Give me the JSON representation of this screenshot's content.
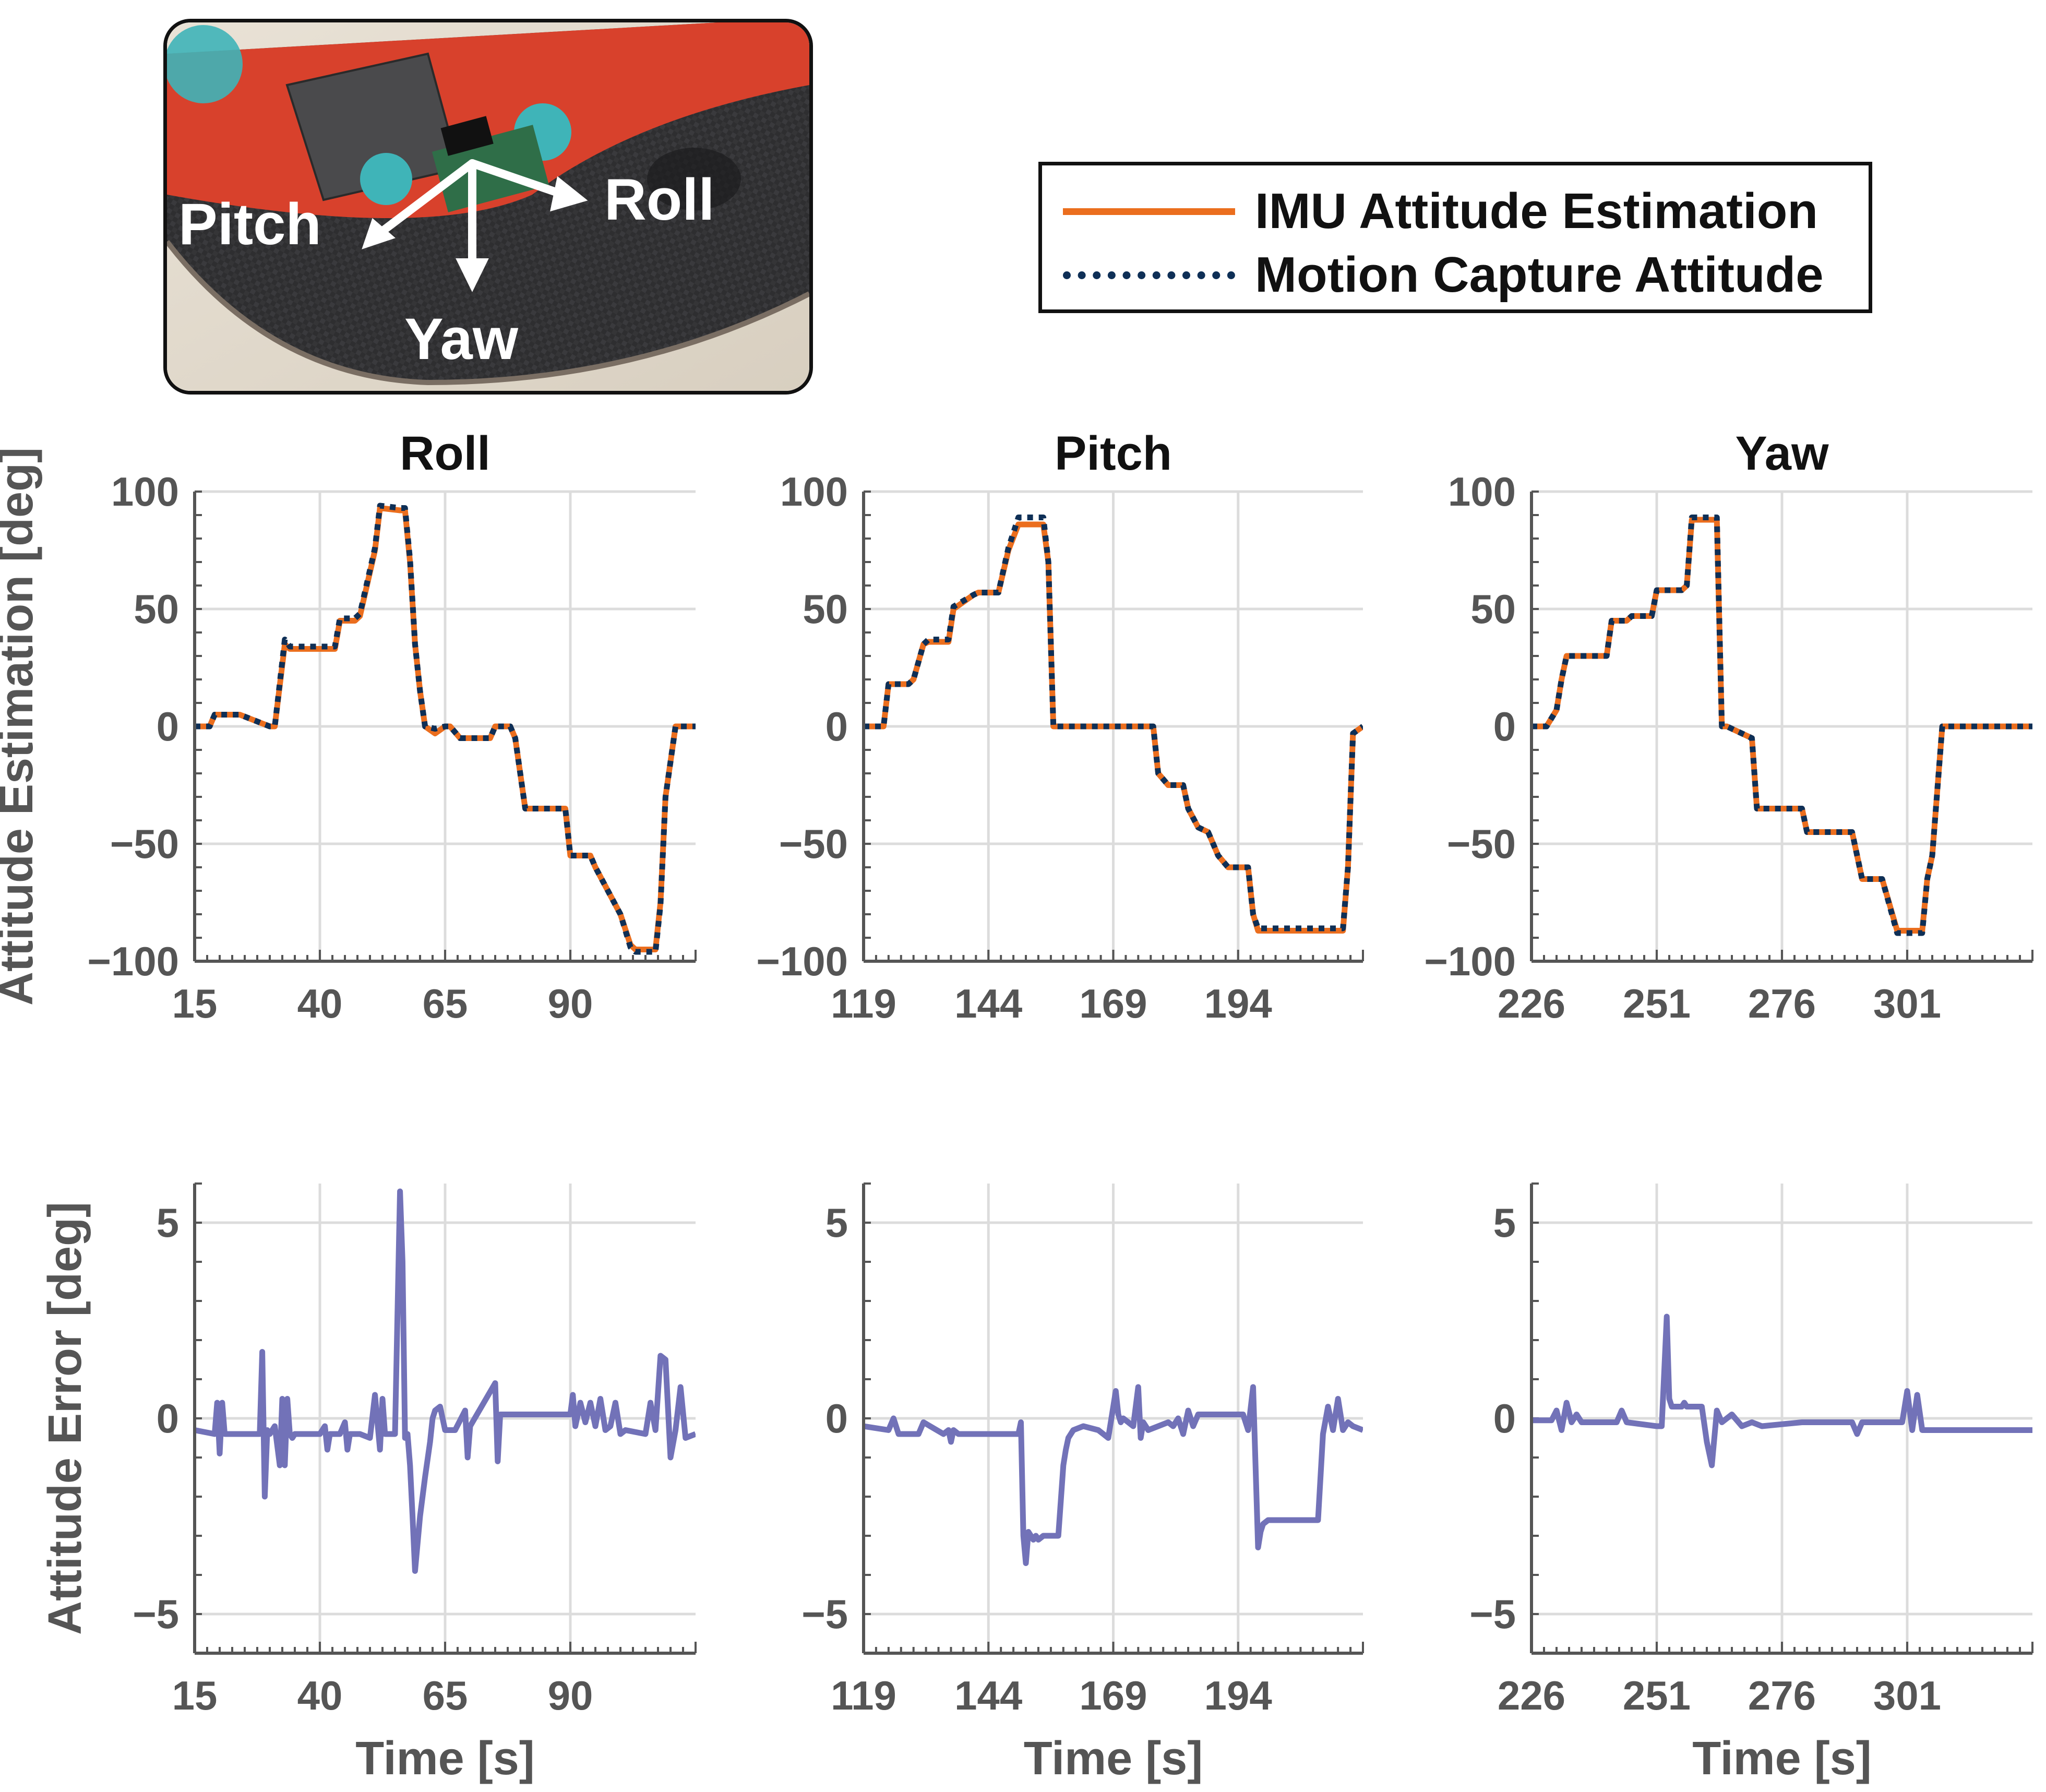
{
  "photo": {
    "labels": {
      "pitch": "Pitch",
      "roll": "Roll",
      "yaw": "Yaw"
    }
  },
  "legend": {
    "imu_label": "IMU Attitude Estimation",
    "mocap_label": "Motion Capture Attitude"
  },
  "colors": {
    "imu": "#EB6E1E",
    "mocap": "#0E2F56",
    "error": "#7272B8",
    "grid": "#dcdcdc",
    "axis": "#555555"
  },
  "chart_data": [
    {
      "type": "line",
      "panel": "roll-estimation",
      "title": "Roll",
      "ylabel": "Attitude Estimation [deg]",
      "xlim": [
        15,
        115
      ],
      "ylim": [
        -100,
        100
      ],
      "xticks": [
        "15",
        "40",
        "65",
        "90"
      ],
      "yticks": [
        "100",
        "50",
        "0",
        "−50",
        "−100"
      ],
      "series": [
        {
          "name": "IMU Attitude Estimation",
          "x": [
            15,
            18,
            19,
            24,
            30,
            31,
            33,
            34,
            35,
            43,
            44,
            47,
            48,
            51,
            52,
            56,
            57,
            58,
            59,
            60,
            61,
            63,
            65,
            66,
            68,
            74,
            75,
            78,
            79,
            80,
            81,
            89,
            90,
            94,
            95,
            100,
            102,
            103,
            107,
            108,
            109,
            111,
            112,
            115
          ],
          "y": [
            0,
            0,
            5,
            5,
            0,
            0,
            35,
            33,
            33,
            33,
            45,
            45,
            47,
            75,
            93,
            92,
            92,
            70,
            35,
            15,
            0,
            -3,
            0,
            0,
            -5,
            -5,
            0,
            0,
            -5,
            -20,
            -35,
            -35,
            -55,
            -55,
            -60,
            -80,
            -93,
            -95,
            -95,
            -75,
            -30,
            0,
            0,
            0
          ]
        },
        {
          "name": "Motion Capture Attitude",
          "x": [
            15,
            18,
            19,
            24,
            30,
            31,
            33,
            34,
            35,
            43,
            44,
            47,
            48,
            51,
            52,
            56,
            57,
            58,
            59,
            60,
            61,
            63,
            65,
            66,
            68,
            74,
            75,
            78,
            79,
            80,
            81,
            89,
            90,
            94,
            95,
            100,
            102,
            103,
            107,
            108,
            109,
            111,
            112,
            115
          ],
          "y": [
            0,
            0,
            5,
            5,
            0,
            0,
            37,
            34,
            34,
            34,
            46,
            46,
            48,
            76,
            94,
            93,
            93,
            71,
            35,
            15,
            0,
            -1,
            0,
            0,
            -5,
            -5,
            0,
            0,
            -5,
            -20,
            -35,
            -35,
            -55,
            -55,
            -60,
            -80,
            -94,
            -96,
            -96,
            -76,
            -30,
            0,
            0,
            0
          ]
        }
      ]
    },
    {
      "type": "line",
      "panel": "pitch-estimation",
      "title": "Pitch",
      "xlim": [
        119,
        219
      ],
      "ylim": [
        -100,
        100
      ],
      "xticks": [
        "119",
        "144",
        "169",
        "194"
      ],
      "yticks": [
        "100",
        "50",
        "0",
        "−50",
        "−100"
      ],
      "series": [
        {
          "name": "IMU Attitude Estimation",
          "x": [
            119,
            123,
            124,
            128,
            129,
            131,
            132,
            136,
            137,
            141,
            142,
            146,
            148,
            150,
            151,
            155,
            156,
            157,
            159,
            164,
            177,
            178,
            180,
            183,
            184,
            186,
            188,
            190,
            192,
            196,
            197,
            198,
            200,
            201,
            215,
            216,
            217,
            219
          ],
          "y": [
            0,
            0,
            18,
            18,
            20,
            35,
            36,
            36,
            50,
            56,
            57,
            57,
            75,
            86,
            86,
            86,
            70,
            0,
            0,
            0,
            0,
            -20,
            -25,
            -25,
            -35,
            -43,
            -45,
            -55,
            -60,
            -60,
            -80,
            -87,
            -87,
            -87,
            -87,
            -60,
            -3,
            0
          ]
        },
        {
          "name": "Motion Capture Attitude",
          "x": [
            119,
            123,
            124,
            128,
            129,
            131,
            132,
            136,
            137,
            141,
            142,
            146,
            148,
            150,
            151,
            155,
            156,
            157,
            159,
            164,
            177,
            178,
            180,
            183,
            184,
            186,
            188,
            190,
            192,
            196,
            197,
            198,
            200,
            201,
            215,
            216,
            217,
            219
          ],
          "y": [
            0,
            0,
            18,
            18,
            20,
            35,
            37,
            37,
            51,
            56,
            57,
            57,
            76,
            89,
            89,
            89,
            70,
            0,
            0,
            0,
            0,
            -20,
            -25,
            -25,
            -35,
            -43,
            -45,
            -55,
            -60,
            -60,
            -80,
            -86,
            -86,
            -86,
            -86,
            -60,
            -3,
            0
          ]
        }
      ]
    },
    {
      "type": "line",
      "panel": "yaw-estimation",
      "title": "Yaw",
      "xlim": [
        226,
        326
      ],
      "ylim": [
        -100,
        100
      ],
      "xticks": [
        "226",
        "251",
        "276",
        "301"
      ],
      "yticks": [
        "100",
        "50",
        "0",
        "−50",
        "−100"
      ],
      "series": [
        {
          "name": "IMU Attitude Estimation",
          "x": [
            226,
            229,
            231,
            232,
            233,
            234,
            241,
            242,
            245,
            246,
            250,
            251,
            256,
            257,
            258,
            263,
            264,
            265,
            270,
            271,
            280,
            281,
            290,
            292,
            296,
            299,
            304,
            305,
            306,
            308,
            326
          ],
          "y": [
            0,
            0,
            7,
            20,
            30,
            30,
            30,
            45,
            45,
            47,
            47,
            58,
            58,
            60,
            88,
            88,
            0,
            0,
            -5,
            -35,
            -35,
            -45,
            -45,
            -65,
            -65,
            -87,
            -87,
            -65,
            -55,
            0,
            0
          ]
        },
        {
          "name": "Motion Capture Attitude",
          "x": [
            226,
            229,
            231,
            232,
            233,
            234,
            241,
            242,
            245,
            246,
            250,
            251,
            256,
            257,
            258,
            263,
            264,
            265,
            270,
            271,
            280,
            281,
            290,
            292,
            296,
            299,
            304,
            305,
            306,
            308,
            326
          ],
          "y": [
            0,
            0,
            7,
            20,
            30,
            30,
            30,
            45,
            45,
            47,
            47,
            58,
            58,
            60,
            89,
            89,
            0,
            0,
            -5,
            -35,
            -35,
            -45,
            -45,
            -65,
            -65,
            -88,
            -88,
            -65,
            -55,
            0,
            0
          ]
        }
      ]
    },
    {
      "type": "line",
      "panel": "roll-error",
      "ylabel": "Attitude Error [deg]",
      "xlabel": "Time [s]",
      "xlim": [
        15,
        115
      ],
      "ylim": [
        -6,
        6
      ],
      "xticks": [
        "15",
        "40",
        "65",
        "90"
      ],
      "yticks": [
        "5",
        "0",
        "−5"
      ],
      "series": [
        {
          "name": "Attitude Error",
          "x": [
            15,
            19,
            19.5,
            20,
            20.5,
            21,
            28,
            28.5,
            29,
            29.5,
            30,
            31,
            32,
            32.5,
            33,
            33.5,
            34,
            34.5,
            35,
            40,
            41,
            41.5,
            42,
            44,
            45,
            45.5,
            46,
            48,
            50,
            51,
            52,
            52.5,
            53,
            55,
            56,
            56.5,
            57,
            57.5,
            58,
            58.5,
            59,
            60,
            61,
            62,
            62.5,
            63,
            64,
            65,
            66,
            67,
            69,
            69.5,
            70,
            75,
            75.5,
            76,
            77,
            77.5,
            78,
            79,
            90,
            90.5,
            91,
            92,
            93,
            94,
            95,
            96,
            97,
            98,
            99,
            100,
            101,
            105,
            106,
            107,
            108,
            109,
            110,
            111,
            112,
            113,
            115
          ],
          "y": [
            -0.3,
            -0.4,
            0.4,
            -0.9,
            0.4,
            -0.4,
            -0.4,
            1.7,
            -2.0,
            -0.3,
            -0.4,
            -0.2,
            -1.2,
            0.5,
            -1.2,
            0.5,
            -0.4,
            -0.5,
            -0.4,
            -0.4,
            -0.2,
            -0.8,
            -0.4,
            -0.4,
            -0.1,
            -0.8,
            -0.4,
            -0.4,
            -0.5,
            0.6,
            -0.8,
            0.5,
            -0.4,
            -0.4,
            5.8,
            4.0,
            -0.5,
            -0.4,
            -1.2,
            -2.5,
            -3.9,
            -2.5,
            -1.5,
            -0.6,
            0.0,
            0.2,
            0.3,
            -0.3,
            -0.3,
            -0.3,
            0.2,
            -1.0,
            -0.2,
            0.9,
            -1.1,
            0.1,
            0.1,
            0.1,
            0.1,
            0.1,
            0.1,
            0.6,
            -0.2,
            0.4,
            -0.1,
            0.4,
            -0.2,
            0.5,
            -0.3,
            -0.2,
            0.4,
            -0.4,
            -0.3,
            -0.4,
            0.4,
            -0.3,
            1.6,
            1.5,
            -1.0,
            -0.3,
            0.8,
            -0.5,
            -0.4
          ]
        }
      ]
    },
    {
      "type": "line",
      "panel": "pitch-error",
      "xlabel": "Time [s]",
      "xlim": [
        119,
        219
      ],
      "ylim": [
        -6,
        6
      ],
      "xticks": [
        "119",
        "144",
        "169",
        "194"
      ],
      "yticks": [
        "5",
        "0",
        "−5"
      ],
      "series": [
        {
          "name": "Attitude Error",
          "x": [
            119,
            124,
            125,
            126,
            130,
            131,
            135,
            136,
            136.5,
            137,
            138,
            140,
            150,
            150.5,
            151,
            151.5,
            152,
            153,
            153.5,
            154,
            155,
            158,
            159,
            159.5,
            160,
            161,
            163,
            166,
            167,
            168,
            169,
            169.5,
            170,
            170.5,
            171,
            173,
            174,
            174.5,
            175,
            176,
            180,
            181,
            182,
            183,
            184,
            185,
            186,
            190,
            191,
            195,
            196,
            197,
            198,
            198.5,
            199,
            200,
            201,
            209,
            210,
            211,
            212,
            213,
            214,
            215,
            216,
            217,
            219
          ],
          "y": [
            -0.2,
            -0.3,
            0.0,
            -0.4,
            -0.4,
            -0.1,
            -0.4,
            -0.3,
            -0.6,
            -0.3,
            -0.4,
            -0.4,
            -0.4,
            -0.1,
            -3.0,
            -3.7,
            -2.9,
            -3.1,
            -3.0,
            -3.1,
            -3.0,
            -3.0,
            -1.2,
            -0.8,
            -0.5,
            -0.3,
            -0.2,
            -0.3,
            -0.4,
            -0.5,
            0.3,
            0.7,
            0.1,
            -0.1,
            0.0,
            -0.2,
            0.8,
            -0.5,
            -0.1,
            -0.3,
            -0.1,
            -0.2,
            0.0,
            -0.4,
            0.2,
            -0.2,
            0.1,
            0.1,
            0.1,
            0.1,
            -0.3,
            0.8,
            -3.3,
            -2.9,
            -2.7,
            -2.6,
            -2.6,
            -2.6,
            -2.6,
            -0.4,
            0.3,
            -0.3,
            0.5,
            -0.3,
            -0.1,
            -0.2,
            -0.3
          ]
        }
      ]
    },
    {
      "type": "line",
      "panel": "yaw-error",
      "xlabel": "Time [s]",
      "xlim": [
        226,
        326
      ],
      "ylim": [
        -6,
        6
      ],
      "xticks": [
        "226",
        "251",
        "276",
        "301"
      ],
      "yticks": [
        "5",
        "0",
        "−5"
      ],
      "series": [
        {
          "name": "Attitude Error",
          "x": [
            226,
            230,
            231,
            232,
            233,
            234,
            235,
            236,
            243,
            244,
            245,
            251,
            252,
            253,
            253.5,
            254,
            256,
            256.5,
            257,
            258,
            260,
            261,
            262,
            262.5,
            263,
            264,
            266,
            268,
            270,
            272,
            280,
            290,
            291,
            292,
            300,
            301,
            302,
            303,
            304,
            305,
            306,
            326
          ],
          "y": [
            -0.05,
            -0.05,
            0.2,
            -0.3,
            0.4,
            -0.1,
            0.1,
            -0.1,
            -0.1,
            0.2,
            -0.1,
            -0.2,
            -0.2,
            2.6,
            0.5,
            0.3,
            0.3,
            0.4,
            0.3,
            0.3,
            0.3,
            -0.6,
            -1.2,
            -0.5,
            0.2,
            -0.1,
            0.1,
            -0.2,
            -0.1,
            -0.2,
            -0.1,
            -0.1,
            -0.4,
            -0.1,
            -0.1,
            0.7,
            -0.3,
            0.6,
            -0.3,
            -0.3,
            -0.3,
            -0.3
          ]
        }
      ]
    }
  ]
}
